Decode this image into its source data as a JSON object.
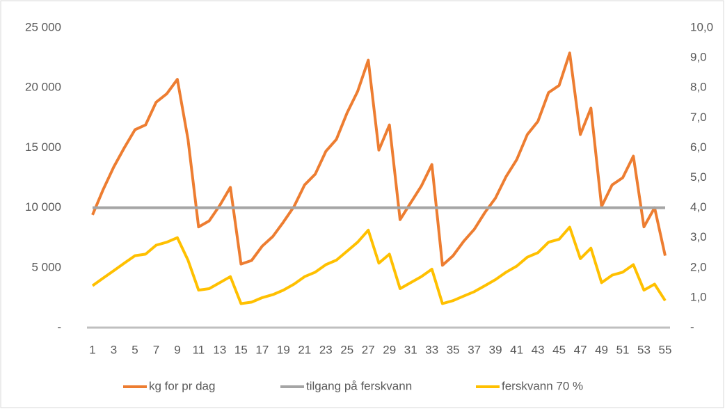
{
  "chart_data": {
    "type": "line",
    "categories": [
      "1",
      null,
      "3",
      null,
      "5",
      null,
      "7",
      null,
      "9",
      null,
      "11",
      null,
      "13",
      null,
      "15",
      null,
      "17",
      null,
      "19",
      null,
      "21",
      null,
      "23",
      null,
      "25",
      null,
      "27",
      null,
      "29",
      null,
      "31",
      null,
      "33",
      null,
      "35",
      null,
      "37",
      null,
      "39",
      null,
      "41",
      null,
      "43",
      null,
      "45",
      null,
      "47",
      null,
      "49",
      null,
      "51",
      null,
      "53",
      null,
      "55"
    ],
    "series": [
      {
        "name": "kg for pr dag",
        "color": "#ed7d31",
        "values": [
          9400,
          11500,
          13400,
          15000,
          16500,
          16900,
          18800,
          19500,
          20700,
          15700,
          8400,
          8900,
          10200,
          11700,
          5300,
          5600,
          6800,
          7600,
          8800,
          10100,
          11900,
          12800,
          14700,
          15700,
          17900,
          19700,
          22300,
          14800,
          16900,
          9000,
          10400,
          11800,
          13600,
          5200,
          6000,
          7200,
          8200,
          9600,
          10800,
          12600,
          14000,
          16100,
          17200,
          19600,
          20200,
          22900,
          16100,
          18300,
          10100,
          11900,
          12500,
          14300,
          8400,
          10000,
          6000
        ]
      },
      {
        "name": "tilgang på ferskvann",
        "color": "#a5a5a5",
        "axis": "y2",
        "values": [
          4,
          4,
          4,
          4,
          4,
          4,
          4,
          4,
          4,
          4,
          4,
          4,
          4,
          4,
          4,
          4,
          4,
          4,
          4,
          4,
          4,
          4,
          4,
          4,
          4,
          4,
          4,
          4,
          4,
          4,
          4,
          4,
          4,
          4,
          4,
          4,
          4,
          4,
          4,
          4,
          4,
          4,
          4,
          4,
          4,
          4,
          4,
          4,
          4,
          4,
          4,
          4,
          4,
          4,
          4
        ]
      },
      {
        "name": "ferskvann 70 %",
        "color": "#ffc000",
        "axis": "y2",
        "values": [
          1.4,
          1.65,
          1.9,
          2.15,
          2.4,
          2.45,
          2.75,
          2.85,
          3.0,
          2.25,
          1.25,
          1.3,
          1.5,
          1.7,
          0.8,
          0.85,
          1.0,
          1.1,
          1.25,
          1.45,
          1.7,
          1.85,
          2.1,
          2.25,
          2.55,
          2.85,
          3.25,
          2.15,
          2.45,
          1.3,
          1.5,
          1.7,
          1.95,
          0.8,
          0.9,
          1.05,
          1.2,
          1.4,
          1.6,
          1.85,
          2.05,
          2.35,
          2.5,
          2.85,
          2.95,
          3.35,
          2.3,
          2.65,
          1.5,
          1.75,
          1.85,
          2.1,
          1.25,
          1.45,
          0.9
        ]
      }
    ],
    "ylim": [
      0,
      25000
    ],
    "yticks": [
      {
        "value": 0,
        "label": "-"
      },
      {
        "value": 5000,
        "label": "5 000"
      },
      {
        "value": 10000,
        "label": "10 000"
      },
      {
        "value": 15000,
        "label": "15 000"
      },
      {
        "value": 20000,
        "label": "20 000"
      },
      {
        "value": 25000,
        "label": "25 000"
      }
    ],
    "y2lim": [
      0,
      10
    ],
    "y2ticks": [
      {
        "value": 0,
        "label": "-"
      },
      {
        "value": 1,
        "label": "1,0"
      },
      {
        "value": 2,
        "label": "2,0"
      },
      {
        "value": 3,
        "label": "3,0"
      },
      {
        "value": 4,
        "label": "4,0"
      },
      {
        "value": 5,
        "label": "5,0"
      },
      {
        "value": 6,
        "label": "6,0"
      },
      {
        "value": 7,
        "label": "7,0"
      },
      {
        "value": 8,
        "label": "8,0"
      },
      {
        "value": 9,
        "label": "9,0"
      },
      {
        "value": 10,
        "label": "10,0"
      }
    ],
    "grid": false,
    "legend": "bottom"
  }
}
